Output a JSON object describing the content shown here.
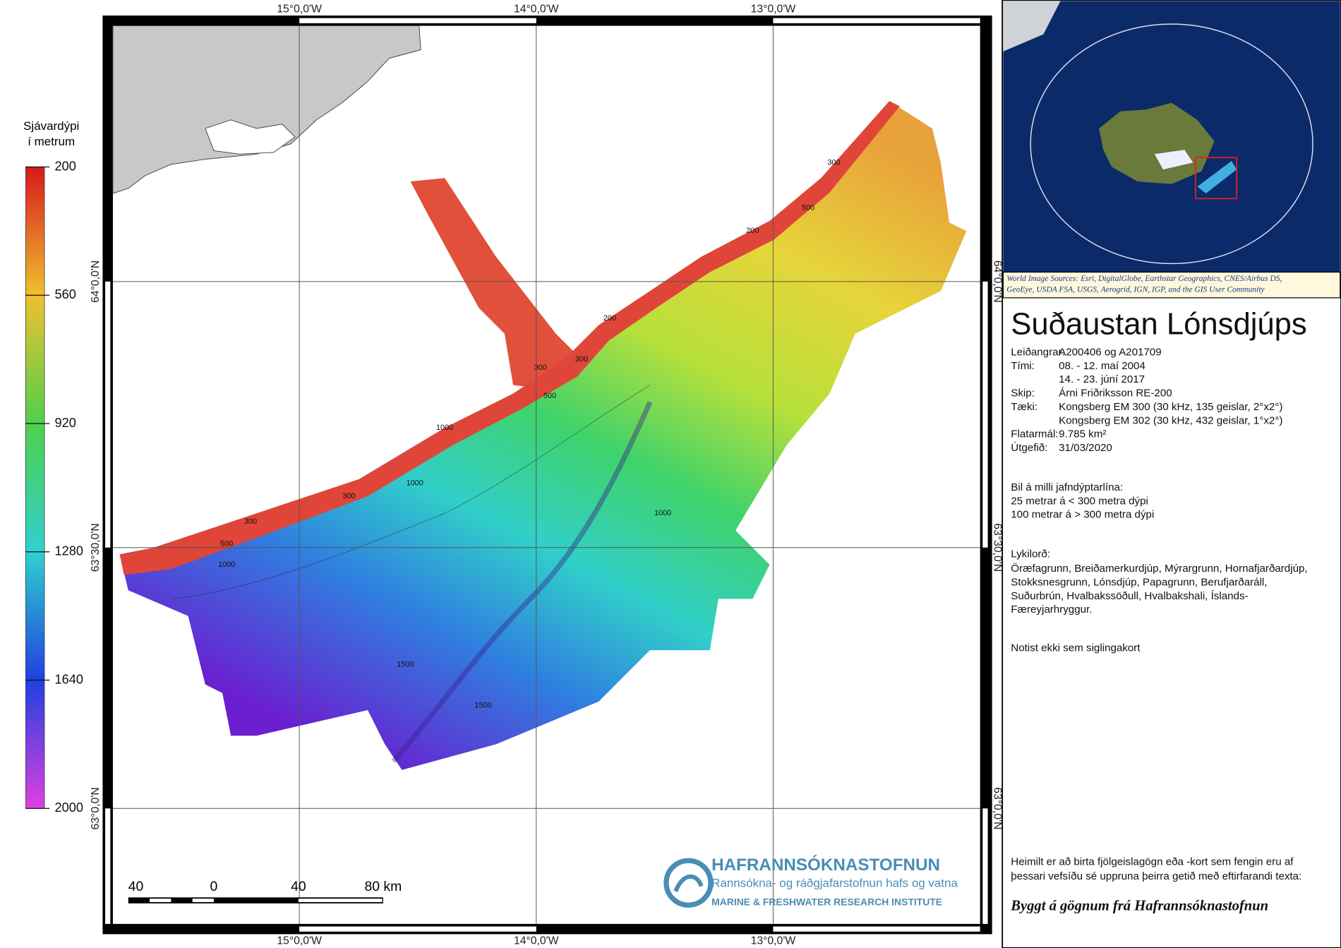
{
  "map": {
    "graticule": {
      "longitudes": [
        "15°0,0'W",
        "14°0,0'W",
        "13°0,0'W"
      ],
      "latitudes": [
        "64°0,0'N",
        "63°30,0'N",
        "63°0,0'N"
      ]
    },
    "legend": {
      "title": [
        "Sjávardýpi",
        "í metrum"
      ],
      "ticks": [
        200,
        560,
        920,
        1280,
        1640,
        2000
      ]
    },
    "contour_labels": [
      300,
      500,
      200,
      200,
      300,
      300,
      500,
      1000,
      300,
      300,
      500,
      1000,
      1000,
      1000,
      1500,
      1500
    ],
    "scale_bar": {
      "labels": [
        "40",
        "0",
        "40",
        "80 km"
      ]
    }
  },
  "logo": {
    "name": "HAFRANNSÓKNASTOFNUN",
    "subtitle": "Rannsókna- og ráðgjafarstofnun hafs og vatna",
    "english": "MARINE & FRESHWATER RESEARCH INSTITUTE"
  },
  "inset": {
    "credit": [
      "World Image Sources: Esri, DigitalGlobe, Earthstar Geographics, CNES/Airbus DS,",
      "GeoEye, USDA FSA, USGS, Aerogrid, IGN, IGP, and the GIS User Community"
    ]
  },
  "info": {
    "title": "Suðaustan Lónsdjúps",
    "rows": [
      {
        "label": "Leiðangrar:",
        "value": [
          "A200406 og A201709"
        ]
      },
      {
        "label": "Tími:",
        "value": [
          "08. - 12. maí 2004",
          "14. - 23. júní 2017"
        ]
      },
      {
        "label": "Skip:",
        "value": [
          "Árni Friðriksson RE-200"
        ]
      },
      {
        "label": "Tæki:",
        "value": [
          "Kongsberg EM 300 (30 kHz, 135 geislar, 2°x2°)",
          "Kongsberg EM 302 (30 kHz, 432 geislar, 1°x2°)"
        ]
      },
      {
        "label": "Flatarmál:",
        "value": [
          "9.785 km²"
        ]
      },
      {
        "label": "Útgefið:",
        "value": [
          "31/03/2020"
        ]
      }
    ],
    "contour_interval": [
      "Bil á milli jafndýptarlína:",
      "25 metrar á < 300 metra dýpi",
      "100 metrar á > 300 metra dýpi"
    ],
    "keywords_label": "Lykilorð:",
    "keywords": [
      "Öræfagrunn, Breiðamerkurdjúp, Mýrargrunn, Hornafjarðardjúp,",
      "Stokksnesgrunn, Lónsdjúp, Papagrunn, Berufjarðaráll,",
      "Suðurbrún, Hvalbakssöðull, Hvalbakshali, Íslands-",
      "Færeyjarhryggur."
    ],
    "warning": "Notist ekki sem siglingakort",
    "license": [
      "Heimilt er að birta fjölgeislagögn eða -kort sem fengin eru af",
      "þessari vefsíðu sé uppruna þeirra getið með eftirfarandi texta:"
    ],
    "attribution": "Byggt á gögnum frá Hafrannsóknastofnun"
  }
}
